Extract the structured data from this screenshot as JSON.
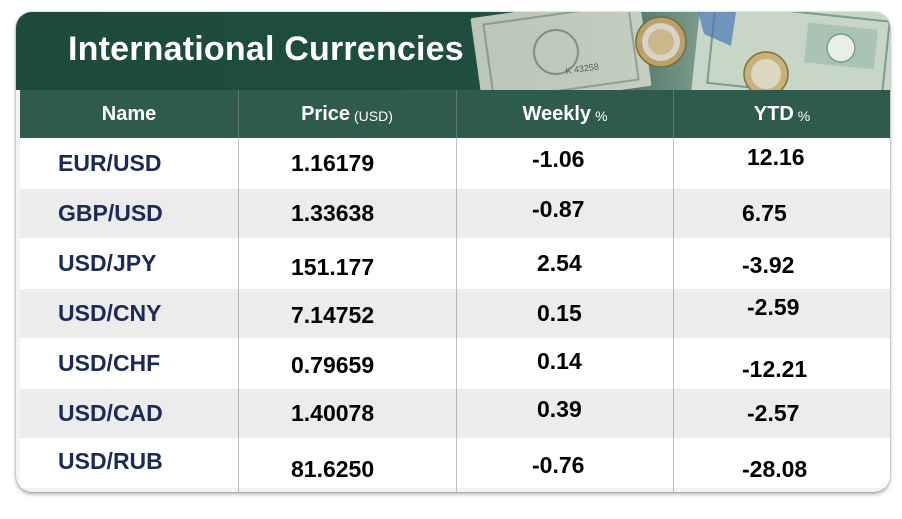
{
  "title": "International Currencies",
  "headers": {
    "name": "Name",
    "price": "Price",
    "price_unit": "(USD)",
    "weekly": "Weekly",
    "weekly_unit": "%",
    "ytd": "YTD",
    "ytd_unit": "%"
  },
  "rows": [
    {
      "name": "EUR/USD",
      "price": "1.16179",
      "weekly": "-1.06",
      "ytd": "12.16"
    },
    {
      "name": "GBP/USD",
      "price": "1.33638",
      "weekly": "-0.87",
      "ytd": "6.75"
    },
    {
      "name": "USD/JPY",
      "price": "151.177",
      "weekly": "2.54",
      "ytd": "-3.92"
    },
    {
      "name": "USD/CNY",
      "price": "7.14752",
      "weekly": "0.15",
      "ytd": "-2.59"
    },
    {
      "name": "USD/CHF",
      "price": "0.79659",
      "weekly": "0.14",
      "ytd": "-12.21"
    },
    {
      "name": "USD/CAD",
      "price": "1.40078",
      "weekly": "0.39",
      "ytd": "-2.57"
    },
    {
      "name": "USD/RUB",
      "price": "81.6250",
      "weekly": "-0.76",
      "ytd": "-28.08"
    }
  ],
  "colors": {
    "banner": "#1f4d3f",
    "header": "#2e5b4b",
    "name_text": "#1c2a57",
    "row_alt": "#ececec"
  },
  "banner_image": "currency-notes-and-coins"
}
